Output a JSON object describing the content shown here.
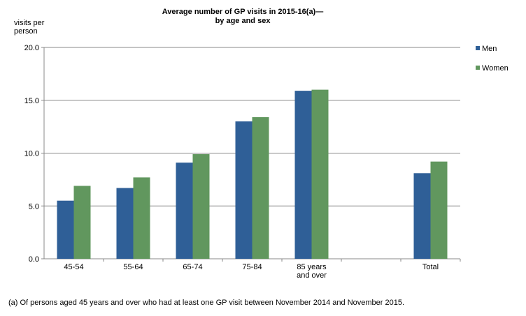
{
  "chart_data": {
    "type": "bar",
    "title": [
      "Average number of GP visits in 2015-16(a)—",
      "by age and sex"
    ],
    "ylabel": [
      "visits per",
      "person"
    ],
    "xlabel": "",
    "ylim": [
      0,
      20
    ],
    "yticks": [
      "0.0",
      "5.0",
      "10.0",
      "15.0",
      "20.0"
    ],
    "grid": true,
    "legend": "right",
    "categories": [
      [
        "45-54"
      ],
      [
        "55-64"
      ],
      [
        "65-74"
      ],
      [
        "75-84"
      ],
      [
        "85 years",
        "and over"
      ],
      [
        ""
      ],
      [
        "Total"
      ]
    ],
    "series": [
      {
        "name": "Men",
        "color": "#2f5f97",
        "values": [
          5.5,
          6.7,
          9.1,
          13.0,
          15.9,
          null,
          8.1
        ]
      },
      {
        "name": "Women",
        "color": "#61975e",
        "values": [
          6.9,
          7.7,
          9.9,
          13.4,
          16.0,
          null,
          9.2
        ]
      }
    ],
    "footnote": "(a) Of persons aged 45 years and over who had at least one GP visit between November 2014 and November 2015."
  }
}
